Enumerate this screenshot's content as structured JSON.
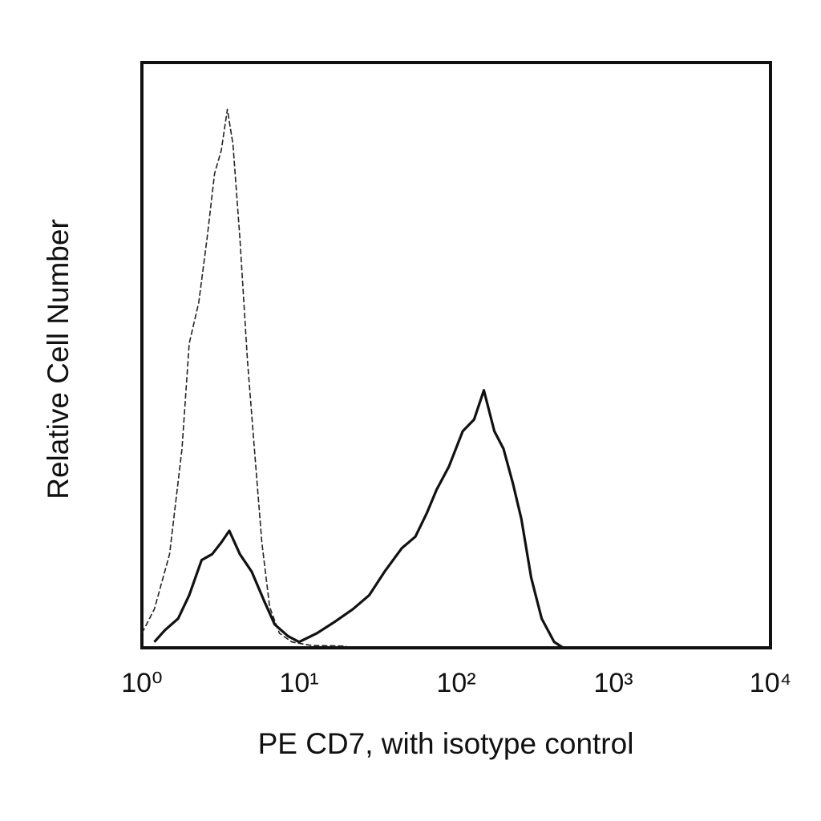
{
  "chart_data": {
    "type": "line",
    "x_label": "PE CD7, with isotype control",
    "y_label": "Relative Cell Number",
    "xscale": "log",
    "xlim": [
      1,
      10000
    ],
    "ylim": [
      0,
      100
    ],
    "xticks": [
      {
        "value": 1,
        "label": "10⁰"
      },
      {
        "value": 10,
        "label": "10¹"
      },
      {
        "value": 100,
        "label": "10²"
      },
      {
        "value": 1000,
        "label": "10³"
      },
      {
        "value": 10000,
        "label": "10⁴"
      }
    ],
    "grid": false,
    "series": [
      {
        "color": "#222222",
        "dash": true,
        "width": 1.6,
        "x": [
          1.0,
          1.2,
          1.5,
          1.8,
          2.0,
          2.3,
          2.6,
          2.9,
          3.2,
          3.5,
          3.8,
          4.2,
          4.7,
          5.2,
          5.8,
          6.5,
          7.5,
          9,
          12,
          20
        ],
        "values": [
          2.5,
          6.6,
          16,
          34,
          52,
          59,
          70,
          81,
          85,
          92,
          86,
          70,
          49,
          34,
          18,
          7,
          2.5,
          1,
          0.4,
          0.3
        ]
      },
      {
        "color": "#111111",
        "dash": false,
        "width": 3.2,
        "x": [
          1.2,
          1.4,
          1.7,
          2.0,
          2.4,
          2.8,
          3.2,
          3.6,
          4.2,
          5.0,
          6.0,
          7.0,
          8.5,
          10,
          13,
          17,
          22,
          28,
          35,
          45,
          55,
          65,
          75,
          90,
          110,
          130,
          150,
          175,
          200,
          230,
          260,
          300,
          350,
          420,
          480
        ],
        "values": [
          1,
          3,
          5,
          9,
          15,
          16,
          18,
          20,
          16,
          13,
          8,
          4,
          2,
          1,
          2.5,
          4.5,
          6.6,
          9,
          13,
          17,
          19,
          23,
          27,
          31,
          37,
          39,
          44,
          37,
          34,
          28,
          22,
          12,
          5,
          1,
          0
        ]
      }
    ]
  }
}
